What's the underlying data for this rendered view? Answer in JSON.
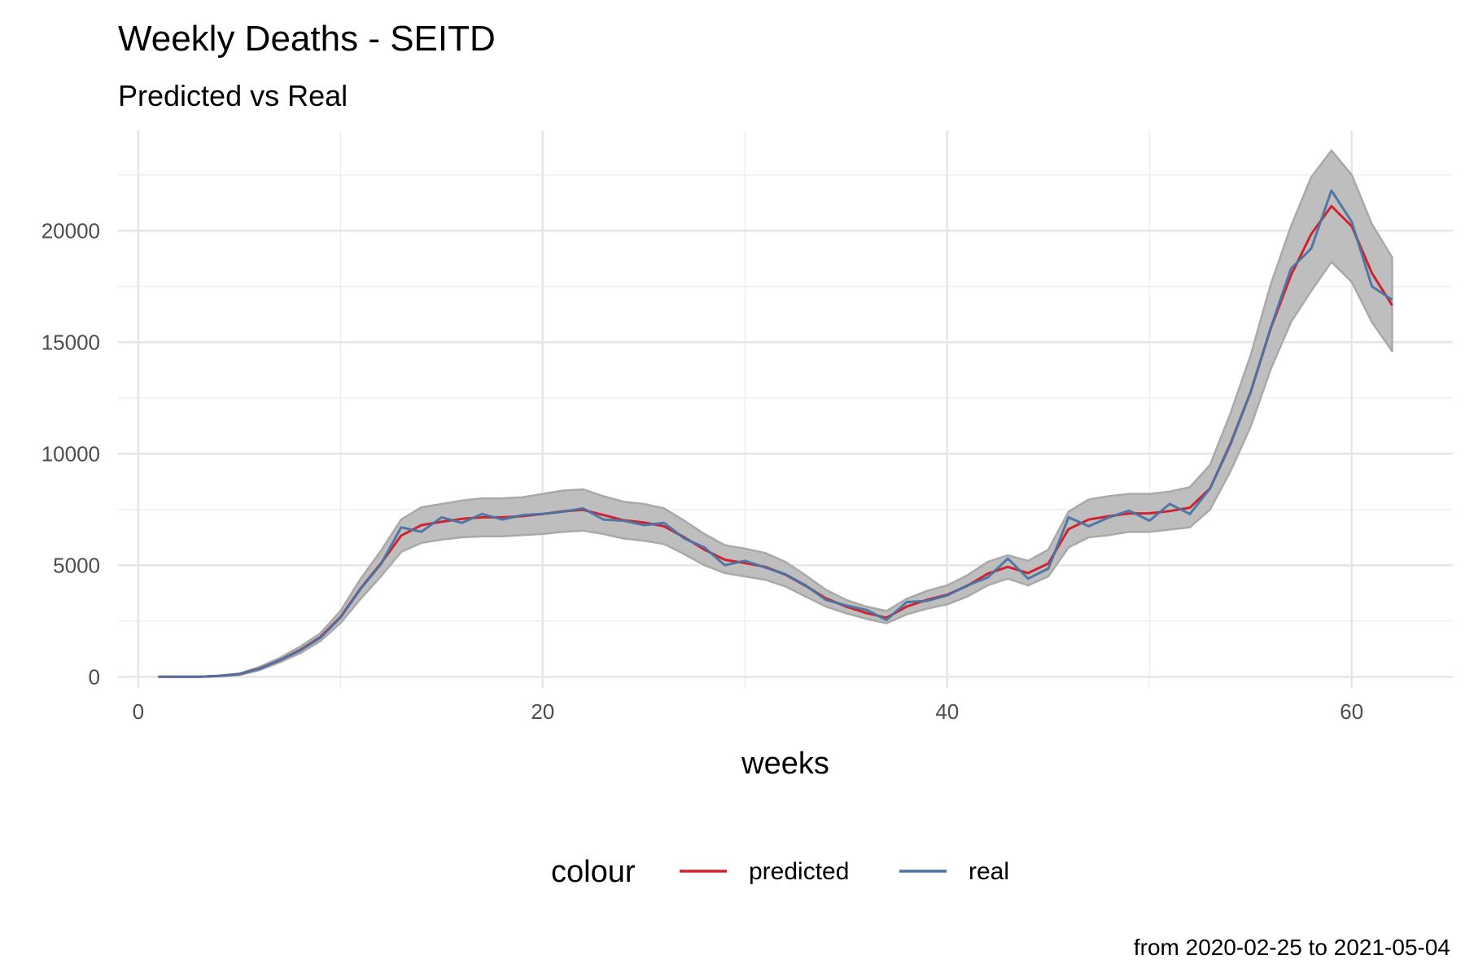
{
  "chart_data": {
    "type": "line",
    "title": "Weekly Deaths - SEITD",
    "subtitle": "Predicted vs Real",
    "xlabel": "weeks",
    "ylabel": "",
    "caption": "from 2020-02-25 to 2021-05-04",
    "xlim": [
      -1,
      65
    ],
    "ylim": [
      -500,
      24500
    ],
    "x_ticks": [
      0,
      20,
      40,
      60
    ],
    "y_ticks": [
      0,
      5000,
      10000,
      15000,
      20000
    ],
    "grid": true,
    "legend": {
      "title": "colour",
      "position": "bottom"
    },
    "x": [
      1,
      2,
      3,
      4,
      5,
      6,
      7,
      8,
      9,
      10,
      11,
      12,
      13,
      14,
      15,
      16,
      17,
      18,
      19,
      20,
      21,
      22,
      23,
      24,
      25,
      26,
      27,
      28,
      29,
      30,
      31,
      32,
      33,
      34,
      35,
      36,
      37,
      38,
      39,
      40,
      41,
      42,
      43,
      44,
      45,
      46,
      47,
      48,
      49,
      50,
      51,
      52,
      53,
      54,
      55,
      56,
      57,
      58,
      59,
      60,
      61,
      62
    ],
    "ribbon": {
      "color": "#bebebe",
      "lower": [
        0,
        0,
        0,
        30,
        80,
        300,
        650,
        1050,
        1600,
        2400,
        3500,
        4500,
        5600,
        6000,
        6150,
        6250,
        6300,
        6300,
        6350,
        6400,
        6500,
        6550,
        6400,
        6200,
        6100,
        5950,
        5500,
        5000,
        4650,
        4500,
        4350,
        4050,
        3600,
        3150,
        2850,
        2600,
        2400,
        2800,
        3050,
        3250,
        3600,
        4100,
        4400,
        4100,
        4500,
        5800,
        6250,
        6350,
        6500,
        6500,
        6600,
        6700,
        7500,
        9200,
        11200,
        13800,
        15900,
        17300,
        18600,
        17700,
        15900,
        14600
      ],
      "upper": [
        0,
        0,
        0,
        60,
        150,
        450,
        850,
        1350,
        1950,
        2950,
        4400,
        5650,
        7050,
        7600,
        7750,
        7900,
        8000,
        8000,
        8050,
        8200,
        8350,
        8400,
        8100,
        7850,
        7750,
        7550,
        7000,
        6400,
        5900,
        5750,
        5550,
        5150,
        4550,
        3900,
        3450,
        3150,
        2950,
        3500,
        3850,
        4100,
        4550,
        5150,
        5450,
        5200,
        5700,
        7400,
        7950,
        8100,
        8200,
        8200,
        8300,
        8500,
        9500,
        11800,
        14400,
        17600,
        20200,
        22400,
        23600,
        22500,
        20300,
        18800
      ]
    },
    "series": [
      {
        "name": "predicted",
        "color": "#d0232f",
        "values": [
          0,
          0,
          0,
          40,
          120,
          370,
          750,
          1200,
          1780,
          2680,
          3970,
          5080,
          6330,
          6800,
          6950,
          7080,
          7150,
          7150,
          7200,
          7300,
          7420,
          7480,
          7250,
          7020,
          6920,
          6750,
          6250,
          5700,
          5250,
          5100,
          4930,
          4580,
          4080,
          3520,
          3150,
          2860,
          2650,
          3150,
          3450,
          3680,
          4080,
          4620,
          4930,
          4650,
          5080,
          6620,
          7050,
          7200,
          7320,
          7330,
          7430,
          7580,
          8450,
          10450,
          12750,
          15630,
          18000,
          19850,
          21100,
          20200,
          18100,
          16650
        ]
      },
      {
        "name": "real",
        "color": "#4a74a4",
        "values": [
          0,
          0,
          0,
          40,
          120,
          360,
          740,
          1180,
          1750,
          2650,
          3950,
          5050,
          6700,
          6500,
          7150,
          6900,
          7300,
          7050,
          7250,
          7300,
          7400,
          7550,
          7050,
          7000,
          6800,
          6900,
          6200,
          5800,
          5000,
          5200,
          4900,
          4600,
          4100,
          3450,
          3200,
          3000,
          2550,
          3350,
          3400,
          3650,
          4100,
          4450,
          5300,
          4400,
          4850,
          7150,
          6750,
          7150,
          7450,
          7000,
          7750,
          7300,
          8450,
          10400,
          12750,
          15650,
          18300,
          19200,
          21800,
          20400,
          17500,
          16900
        ]
      }
    ]
  }
}
